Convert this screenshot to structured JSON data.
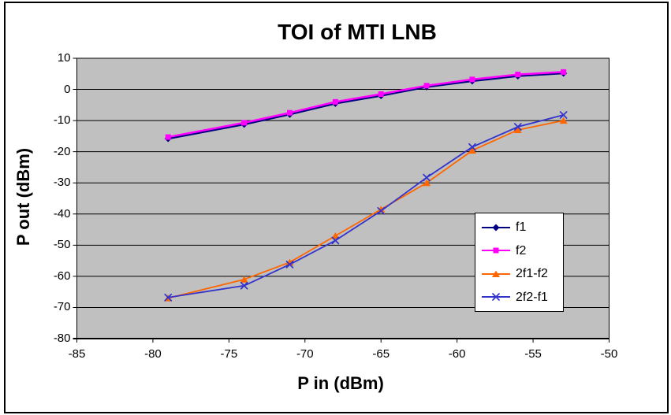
{
  "chart_data": {
    "type": "line",
    "title": "TOI of MTI LNB",
    "xlabel": "P in (dBm)",
    "ylabel": "P out (dBm)",
    "xlim": [
      -85,
      -50
    ],
    "ylim": [
      -80,
      10
    ],
    "x_ticks": [
      "-85",
      "-80",
      "-75",
      "-70",
      "-65",
      "-60",
      "-55",
      "-50"
    ],
    "y_ticks": [
      "10",
      "0",
      "-10",
      "-20",
      "-30",
      "-40",
      "-50",
      "-60",
      "-70",
      "-80"
    ],
    "grid": "horizontal-only",
    "plot_bg": "#c0c0c0",
    "gridline_color": "#000000",
    "legend_position": "inside-right",
    "x": [
      -79,
      -74,
      -71,
      -68,
      -65,
      -62,
      -59,
      -56,
      -53
    ],
    "series": [
      {
        "name": "f1",
        "color": "#000080",
        "marker": "diamond",
        "values": [
          -15.8,
          -11.2,
          -8.0,
          -4.5,
          -2.0,
          0.8,
          2.7,
          4.3,
          5.2
        ]
      },
      {
        "name": "f2",
        "color": "#ff00ff",
        "marker": "square",
        "values": [
          -15.3,
          -10.7,
          -7.5,
          -4.0,
          -1.5,
          1.2,
          3.2,
          4.8,
          5.6
        ]
      },
      {
        "name": "2f1-f2",
        "color": "#ff6600",
        "marker": "triangle",
        "values": [
          -67.0,
          -61.0,
          -55.5,
          -47.0,
          -38.5,
          -30.0,
          -19.6,
          -13.0,
          -10.0
        ]
      },
      {
        "name": "2f2-f1",
        "color": "#3333cc",
        "marker": "x",
        "values": [
          -66.8,
          -63.0,
          -56.2,
          -48.5,
          -39.0,
          -28.3,
          -18.5,
          -12.0,
          -8.2
        ]
      }
    ]
  }
}
